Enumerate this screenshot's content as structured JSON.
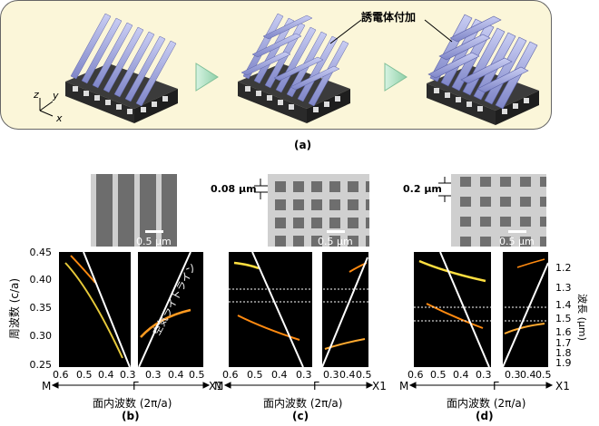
{
  "figure": {
    "annotation_dielectric": "誘電体付加",
    "axis_z": "z",
    "axis_y": "y",
    "axis_x": "x",
    "label_a": "(a)",
    "label_b": "(b)",
    "label_c": "(c)",
    "label_d": "(d)",
    "scale_bar": "0.5 μm",
    "thickness_c": "0.08 μm",
    "thickness_d": "0.2 μm",
    "air_light_line": "空気ライトライン",
    "y_axis_left_label": "周波数 (c/a)",
    "y_axis_right_label": "波長 (μm)",
    "x_axis_label": "面内波数 (2π/a)",
    "x_label_M": "M",
    "x_label_Gamma": "Γ",
    "x_label_X1": "X1"
  },
  "chart_data": {
    "type": "heatmap",
    "yticks_left": [
      "0.45",
      "0.40",
      "0.35",
      "0.30",
      "0.25"
    ],
    "ylim": [
      0.25,
      0.45
    ],
    "yticks_right": [
      "1.2",
      "1.3",
      "1.4",
      "1.5",
      "1.6",
      "1.7",
      "1.8",
      "1.9"
    ],
    "xticks_left": [
      "0.6",
      "0.5",
      "0.4",
      "0.3"
    ],
    "xticks_right": [
      "0.3",
      "0.4",
      "0.5"
    ],
    "dashed_lines_c": [
      0.383,
      0.368
    ],
    "dashed_lines_d": [
      0.356,
      0.328
    ]
  }
}
